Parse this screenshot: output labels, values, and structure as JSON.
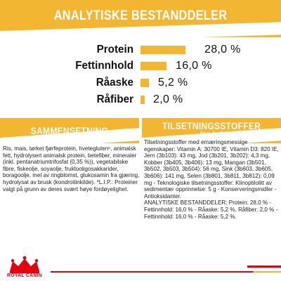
{
  "header": {
    "title": "ANALYTISKE BESTANDDELER"
  },
  "nutrients": [
    {
      "label": "Protein",
      "value": "28,0 %",
      "percent": 28.0
    },
    {
      "label": "Fettinnhold",
      "value": "16,0 %",
      "percent": 16.0
    },
    {
      "label": "Råaske",
      "value": "5,2 %",
      "percent": 5.2
    },
    {
      "label": "Råfiber",
      "value": "2,0 %",
      "percent": 2.0
    }
  ],
  "composition": {
    "title": "SAMMENSETNING",
    "text": "Ris, mais, tørket fjørfeprotein, hveteglutenⁿ, animalsk fett, hydrolysert animalsk protein, betefiber, mineraler (inkl. pentanatriumtrifosfat (0,35 %)), vegetabilske fibre, fiskeolje, soyaolje, fruktooligosakkarider, boragoolje, mel av ringblomst, glukosamin fra gjæring, hydrolysat av brusk (kondroitinkilde). *L.I.P.: Proteiner valgt på grunn av deres svært høye fordøyelighet."
  },
  "additives": {
    "title": "TILSETNINGSSTOFFER",
    "subtitle": "(pr. kg)",
    "text": "Tilsetningsstoffer med ernæringsmessige egenskaper: Vitamin A: 30700 IE, Vitamin D3: 820 IE, Jern (3b103): 43 mg, Jod (3b201, 3b202): 4,3 mg, Kobber (3b405, 3b406): 13 mg, Mangan (3b501, 3b502, 3b503, 3b504): 56 mg, Sink (3b603, 3b605, 3b606): 141 mg, Selen (3b801, 3b811, 3b812): 0,09 mg - Teknologiske tilsetningsstoffer: Klinoptilolitt av sedimentær opprinnelse: 5 g - Konserveringsmidler - Antioksidanter.\nANALYTISKE BESTANDDELER: Protein: 28,0 % - Fettinnhold: 16,0 % - Råaske: 5,2 %, Råfiber: 2,0 % - Fettinnhold: 16,0 % - Råaske: 5,2 %."
  },
  "brand": {
    "name": "ROYAL CANIN",
    "accent": "#e3000f",
    "yellow": "#f2b632"
  }
}
